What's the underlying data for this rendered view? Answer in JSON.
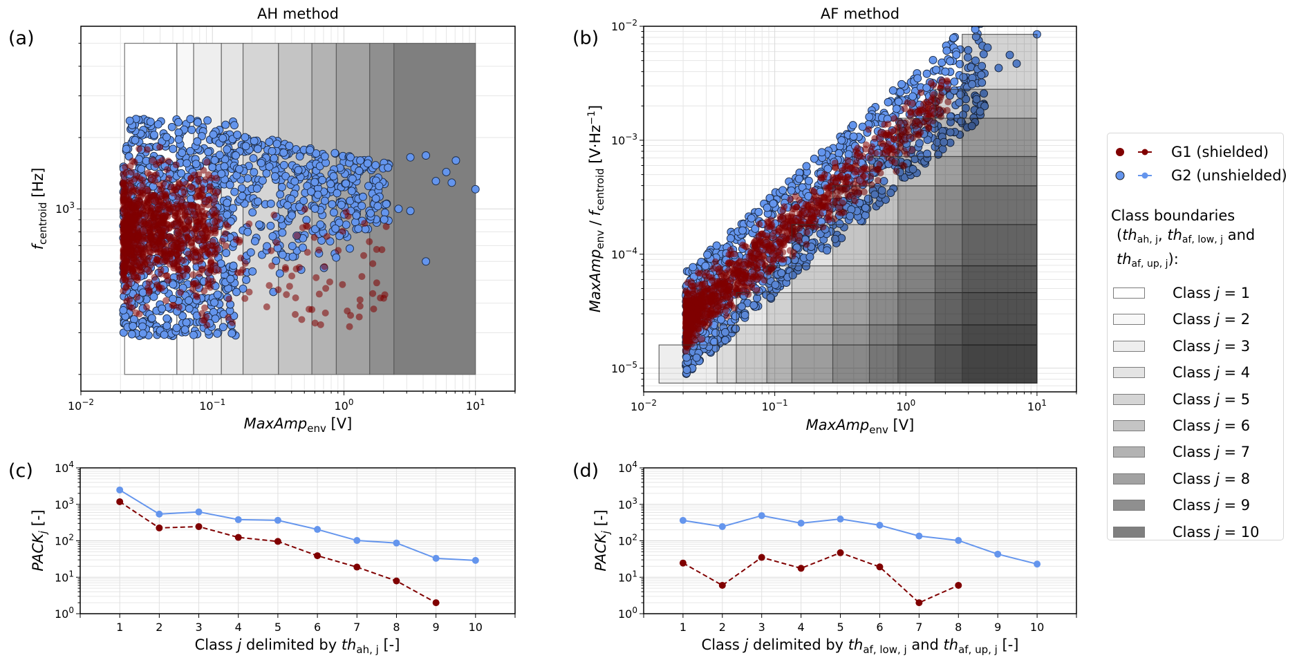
{
  "figure": {
    "panel_labels": [
      "(a)",
      "(b)",
      "(c)",
      "(d)"
    ],
    "colors": {
      "g1": "#800000",
      "g2": "#6495ed",
      "g2_dark": "#2c4470",
      "class_fills": [
        "#ffffff",
        "#f8f8f8",
        "#eeeeee",
        "#e4e4e4",
        "#d5d5d5",
        "#c4c4c4",
        "#b3b3b3",
        "#a2a2a2",
        "#8f8f8f",
        "#7f7f7f"
      ]
    }
  },
  "legend": {
    "series": [
      {
        "label": "G1 (shielded)",
        "color": "#800000",
        "line_style": "dashed"
      },
      {
        "label": "G2 (unshielded)",
        "color": "#6495ed",
        "line_style": "solid"
      }
    ],
    "heading_line1": "Class boundaries",
    "heading_th": "th",
    "heading_sub_ah": "ah, j",
    "heading_sub_af_low": "af, low, j",
    "heading_and": "and",
    "heading_sub_af_up": "af, up, j",
    "heading_end": "):",
    "classes": [
      {
        "label": "Class j = 1"
      },
      {
        "label": "Class j = 2"
      },
      {
        "label": "Class j = 3"
      },
      {
        "label": "Class j = 4"
      },
      {
        "label": "Class j = 5"
      },
      {
        "label": "Class j = 6"
      },
      {
        "label": "Class j = 7"
      },
      {
        "label": "Class j = 8"
      },
      {
        "label": "Class j = 9"
      },
      {
        "label": "Class j = 10"
      }
    ]
  },
  "chart_data": [
    {
      "id": "a",
      "type": "scatter",
      "title": "AH method",
      "xlabel": "MaxAmp_env [V]",
      "ylabel": "f_centroid [Hz]",
      "xscale": "log",
      "yscale": "log",
      "xlim": [
        0.01,
        20
      ],
      "ylim": [
        170,
        5900
      ],
      "xticks": [
        {
          "v": 0.01,
          "label": "10^-2"
        },
        {
          "v": 0.1,
          "label": "10^-1"
        },
        {
          "v": 1,
          "label": "10^0"
        },
        {
          "v": 10,
          "label": "10^1"
        }
      ],
      "yticks": [
        {
          "v": 1000,
          "label": "10^3"
        }
      ],
      "grid": true,
      "class_boundaries_x": [
        0.0215,
        0.0537,
        0.072,
        0.117,
        0.171,
        0.318,
        0.571,
        0.875,
        1.57,
        2.4,
        10.0
      ],
      "class_boxes_y": [
        200,
        5000
      ],
      "series": [
        {
          "name": "G1 (shielded)",
          "color": "#800000",
          "clusters": [
            {
              "x_range": [
                0.021,
                0.11
              ],
              "y_range": [
                330,
                2000
              ],
              "n": 1400,
              "density": "dense"
            },
            {
              "x_range": [
                0.08,
                2.1
              ],
              "y_range": [
                310,
                1000
              ],
              "n": 80,
              "density": "sparse"
            }
          ]
        },
        {
          "name": "G2 (unshielded)",
          "color": "#6495ed",
          "clusters": [
            {
              "x_range": [
                0.021,
                0.15
              ],
              "y_range": [
                290,
                2400
              ],
              "n": 1100,
              "density": "dense"
            },
            {
              "x_range": [
                0.1,
                2.2
              ],
              "y_range": [
                330,
                2100
              ],
              "n": 450,
              "density": "medium"
            }
          ],
          "outliers": [
            [
              10.0,
              1210
            ],
            [
              4.2,
              600
            ],
            [
              7.1,
              1600
            ],
            [
              6.0,
              1430
            ],
            [
              3.2,
              1650
            ],
            [
              4.2,
              1680
            ],
            [
              5.0,
              1310
            ],
            [
              6.6,
              1290
            ],
            [
              3.2,
              980
            ],
            [
              2.6,
              1000
            ]
          ]
        }
      ]
    },
    {
      "id": "b",
      "type": "scatter",
      "title": "AF method",
      "xlabel": "MaxAmp_env [V]",
      "ylabel": "MaxAmp_env / f_centroid [V·Hz^-1]",
      "xscale": "log",
      "yscale": "log",
      "xlim": [
        0.01,
        20
      ],
      "ylim": [
        6.2e-06,
        0.01
      ],
      "xticks": [
        {
          "v": 0.01,
          "label": "10^-2"
        },
        {
          "v": 0.1,
          "label": "10^-1"
        },
        {
          "v": 1,
          "label": "10^0"
        },
        {
          "v": 10,
          "label": "10^1"
        }
      ],
      "yticks": [
        {
          "v": 1e-05,
          "label": "10^-5"
        },
        {
          "v": 0.0001,
          "label": "10^-4"
        },
        {
          "v": 0.001,
          "label": "10^-3"
        },
        {
          "v": 0.01,
          "label": "10^-2"
        }
      ],
      "grid": true,
      "class_boxes": [
        {
          "j": 1,
          "x_low": 0.0131,
          "x_high": 10,
          "y_low": 7.4e-06,
          "y_high": 1.6e-05
        },
        {
          "j": 2,
          "x_low": 0.0363,
          "x_high": 10,
          "y_low": 7.4e-06,
          "y_high": 2.4e-05
        },
        {
          "j": 3,
          "x_low": 0.051,
          "x_high": 10,
          "y_low": 7.4e-06,
          "y_high": 4.6e-05
        },
        {
          "j": 4,
          "x_low": 0.087,
          "x_high": 10,
          "y_low": 7.4e-06,
          "y_high": 7.9e-05
        },
        {
          "j": 5,
          "x_low": 0.135,
          "x_high": 10,
          "y_low": 7.4e-06,
          "y_high": 0.000182
        },
        {
          "j": 6,
          "x_low": 0.277,
          "x_high": 10,
          "y_low": 7.4e-06,
          "y_high": 0.000398
        },
        {
          "j": 7,
          "x_low": 0.527,
          "x_high": 10,
          "y_low": 7.4e-06,
          "y_high": 0.00072
        },
        {
          "j": 8,
          "x_low": 0.87,
          "x_high": 10,
          "y_low": 7.4e-06,
          "y_high": 0.00156
        },
        {
          "j": 9,
          "x_low": 1.67,
          "x_high": 10,
          "y_low": 7.4e-06,
          "y_high": 0.0028
        },
        {
          "j": 10,
          "x_low": 2.69,
          "x_high": 10,
          "y_low": 7.4e-06,
          "y_high": 0.0085
        }
      ],
      "series": [
        {
          "name": "G1 (shielded)",
          "color": "#800000",
          "relation": "y = x / f, f in [330, 2000] Hz",
          "x_range": [
            0.021,
            2.1
          ]
        },
        {
          "name": "G2 (unshielded)",
          "color": "#6495ed",
          "relation": "y = x / f, f in [290, 2400] Hz",
          "x_range": [
            0.021,
            10
          ],
          "outliers": [
            [
              10.0,
              0.0085
            ],
            [
              4.2,
              0.0065
            ],
            [
              6.2,
              0.0056
            ],
            [
              7.0,
              0.0047
            ],
            [
              5.1,
              0.0043
            ],
            [
              2.0,
              0.004
            ],
            [
              3.2,
              0.0031
            ],
            [
              3.8,
              0.0032
            ]
          ]
        }
      ]
    },
    {
      "id": "c",
      "type": "line",
      "xlabel": "Class j delimited by th_ah,j [-]",
      "ylabel": "PACK_j [-]",
      "yscale": "log",
      "xlim": [
        0,
        11
      ],
      "ylim": [
        1,
        10000
      ],
      "x": [
        1,
        2,
        3,
        4,
        5,
        6,
        7,
        8,
        9,
        10
      ],
      "xticks": [
        "1",
        "2",
        "3",
        "4",
        "5",
        "6",
        "7",
        "8",
        "9",
        "10"
      ],
      "yticks": [
        {
          "v": 1,
          "label": "10^0"
        },
        {
          "v": 10,
          "label": "10^1"
        },
        {
          "v": 100,
          "label": "10^2"
        },
        {
          "v": 1000,
          "label": "10^3"
        },
        {
          "v": 10000,
          "label": "10^4"
        }
      ],
      "grid": true,
      "series": [
        {
          "name": "G1 (shielded)",
          "color": "#800000",
          "style": "dashed",
          "values": [
            1180,
            225,
            245,
            124,
            96,
            39,
            19,
            7.9,
            2,
            null
          ]
        },
        {
          "name": "G2 (unshielded)",
          "color": "#6495ed",
          "style": "solid",
          "values": [
            2480,
            540,
            620,
            380,
            365,
            205,
            102,
            87,
            33,
            29
          ]
        }
      ]
    },
    {
      "id": "d",
      "type": "line",
      "xlabel": "Class j delimited by th_af,low,j and th_af,up,j [-]",
      "ylabel": "PACK_j [-]",
      "yscale": "log",
      "xlim": [
        0,
        11
      ],
      "ylim": [
        1,
        10000
      ],
      "x": [
        1,
        2,
        3,
        4,
        5,
        6,
        7,
        8,
        9,
        10
      ],
      "xticks": [
        "1",
        "2",
        "3",
        "4",
        "5",
        "6",
        "7",
        "8",
        "9",
        "10"
      ],
      "yticks": [
        {
          "v": 1,
          "label": "10^0"
        },
        {
          "v": 10,
          "label": "10^1"
        },
        {
          "v": 100,
          "label": "10^2"
        },
        {
          "v": 1000,
          "label": "10^3"
        },
        {
          "v": 10000,
          "label": "10^4"
        }
      ],
      "grid": true,
      "series": [
        {
          "name": "G1 (shielded)",
          "color": "#800000",
          "style": "dashed",
          "values": [
            24.5,
            6,
            35,
            17.6,
            47,
            19.2,
            2,
            6,
            null,
            null
          ]
        },
        {
          "name": "G2 (unshielded)",
          "color": "#6495ed",
          "style": "solid",
          "values": [
            363,
            245,
            490,
            305,
            395,
            267,
            135,
            102,
            43,
            23
          ]
        }
      ]
    }
  ],
  "labels": {
    "a_title": "AH method",
    "b_title": "AF method",
    "xlabel_main": "MaxAmp",
    "xlabel_sub": "env",
    "xlabel_unit": " [V]",
    "a_ylabel_f": "f",
    "a_ylabel_sub": "centroid",
    "a_ylabel_unit": " [Hz]",
    "b_ylabel_main": "MaxAmp",
    "b_ylabel_sub": "env",
    "b_ylabel_mid": " / ",
    "b_ylabel_f": "f",
    "b_ylabel_sub2": "centroid",
    "b_ylabel_unit": " [V·Hz",
    "b_ylabel_exp": "−1",
    "b_ylabel_end": "]",
    "pack_main": "PACK",
    "pack_sub": "j",
    "pack_unit": " [-]",
    "c_xlabel_pre": "Class ",
    "c_xlabel_j": "j",
    "c_xlabel_mid": " delimited by ",
    "c_xlabel_th": "th",
    "c_xlabel_sub": "ah, j",
    "c_xlabel_end": " [-]",
    "d_xlabel_sub1": "af, low, j",
    "d_xlabel_and": " and ",
    "d_xlabel_sub2": "af, up, j"
  }
}
